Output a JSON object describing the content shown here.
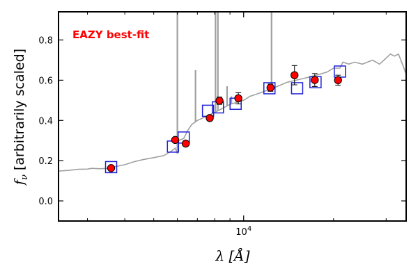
{
  "chart_data": {
    "type": "scatter",
    "x_scale": "log",
    "xlim": [
      2400,
      35000
    ],
    "ylim": [
      -0.1,
      0.94
    ],
    "grid": false,
    "xlabel_text": "λ [Å]",
    "ylabel_symbol": "f",
    "ylabel_sub": "ν",
    "ylabel_text": "[arbitrarily scaled]",
    "y_ticks": [
      0.0,
      0.2,
      0.4,
      0.6,
      0.8
    ],
    "y_tick_labels": [
      "0.0",
      "0.2",
      "0.4",
      "0.6",
      "0.8"
    ],
    "x_tick_label": {
      "x": 10000,
      "base": "10",
      "exp": "4"
    },
    "annotation": {
      "text": "EAZY best-fit",
      "color": "#ff0000"
    },
    "observed_photometry": {
      "color": "#ff0000",
      "points": [
        {
          "x": 3600,
          "y": 0.163,
          "err": 0.012
        },
        {
          "x": 5900,
          "y": 0.303,
          "err": 0.01
        },
        {
          "x": 6400,
          "y": 0.285,
          "err": 0.01
        },
        {
          "x": 7700,
          "y": 0.412,
          "err": 0.01
        },
        {
          "x": 8300,
          "y": 0.498,
          "err": 0.018
        },
        {
          "x": 9600,
          "y": 0.51,
          "err": 0.028
        },
        {
          "x": 12300,
          "y": 0.563,
          "err": 0.018
        },
        {
          "x": 14800,
          "y": 0.625,
          "err": 0.048
        },
        {
          "x": 17300,
          "y": 0.601,
          "err": 0.032
        },
        {
          "x": 20700,
          "y": 0.6,
          "err": 0.025
        }
      ]
    },
    "model_photometry": {
      "color": "#1f1fd8",
      "points": [
        {
          "x": 3600,
          "y": 0.168
        },
        {
          "x": 5800,
          "y": 0.27
        },
        {
          "x": 6300,
          "y": 0.315
        },
        {
          "x": 7600,
          "y": 0.448
        },
        {
          "x": 8200,
          "y": 0.465
        },
        {
          "x": 9400,
          "y": 0.483
        },
        {
          "x": 12200,
          "y": 0.56
        },
        {
          "x": 15100,
          "y": 0.56
        },
        {
          "x": 17400,
          "y": 0.59
        },
        {
          "x": 21000,
          "y": 0.643
        }
      ]
    },
    "model_sed": {
      "color": "#a0a0a0",
      "points": [
        [
          2400,
          0.148
        ],
        [
          2600,
          0.152
        ],
        [
          2800,
          0.157
        ],
        [
          3000,
          0.158
        ],
        [
          3100,
          0.162
        ],
        [
          3300,
          0.16
        ],
        [
          3500,
          0.162
        ],
        [
          3700,
          0.17
        ],
        [
          4000,
          0.18
        ],
        [
          4300,
          0.195
        ],
        [
          4600,
          0.205
        ],
        [
          5000,
          0.215
        ],
        [
          5400,
          0.225
        ],
        [
          5700,
          0.245
        ],
        [
          5900,
          0.262
        ],
        [
          6000,
          0.235
        ],
        [
          6050,
          0.3
        ],
        [
          6300,
          0.31
        ],
        [
          6500,
          0.35
        ],
        [
          6700,
          0.38
        ],
        [
          7000,
          0.4
        ],
        [
          7500,
          0.42
        ],
        [
          8000,
          0.44
        ],
        [
          8500,
          0.46
        ],
        [
          9000,
          0.48
        ],
        [
          9500,
          0.49
        ],
        [
          10000,
          0.5
        ],
        [
          10500,
          0.52
        ],
        [
          11000,
          0.53
        ],
        [
          12000,
          0.55
        ],
        [
          13000,
          0.57
        ],
        [
          14000,
          0.59
        ],
        [
          15000,
          0.6
        ],
        [
          16000,
          0.61
        ],
        [
          17000,
          0.62
        ],
        [
          18000,
          0.63
        ],
        [
          19000,
          0.64
        ],
        [
          20000,
          0.66
        ],
        [
          21000,
          0.66
        ],
        [
          21500,
          0.69
        ],
        [
          22500,
          0.68
        ],
        [
          23500,
          0.69
        ],
        [
          25000,
          0.68
        ],
        [
          27000,
          0.7
        ],
        [
          28500,
          0.68
        ],
        [
          29500,
          0.7
        ],
        [
          31000,
          0.73
        ],
        [
          32000,
          0.72
        ],
        [
          33000,
          0.73
        ],
        [
          34000,
          0.68
        ],
        [
          35000,
          0.63
        ]
      ],
      "emission_lines": [
        {
          "x": 6000,
          "peak": 0.94
        },
        {
          "x": 6900,
          "peak": 0.65
        },
        {
          "x": 8050,
          "peak": 0.94
        },
        {
          "x": 8200,
          "peak": 0.94
        },
        {
          "x": 12400,
          "peak": 0.94
        },
        {
          "x": 8800,
          "peak": 0.57
        },
        {
          "x": 9100,
          "peak": 0.52
        }
      ]
    }
  }
}
